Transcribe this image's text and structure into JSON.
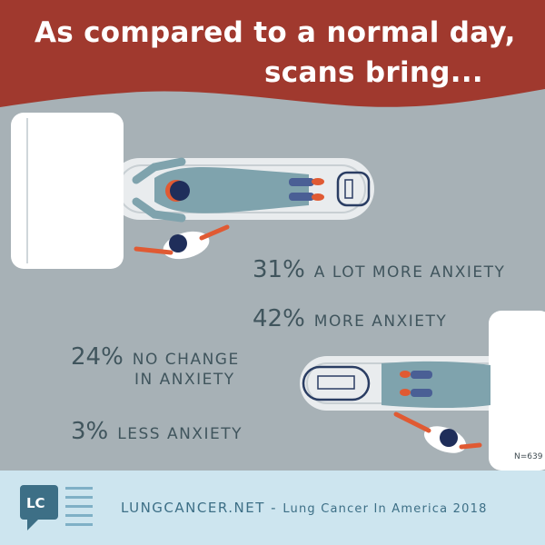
{
  "headline": {
    "line1": "As compared to a normal day,",
    "line2": "scans bring..."
  },
  "stats": [
    {
      "pct": "31%",
      "label": "a lot more anxiety"
    },
    {
      "pct": "42%",
      "label": "more anxiety"
    },
    {
      "pct": "24%",
      "label": "no change",
      "label2": "in anxiety"
    },
    {
      "pct": "3%",
      "label": "less anxiety"
    }
  ],
  "sample_size": "N=639",
  "footer": {
    "logo": "LC",
    "site": "LUNGCANCER.NET",
    "separator": " - ",
    "source": "Lung Cancer In America 2018"
  },
  "colors": {
    "header": "#a0392e",
    "background": "#a7b1b6",
    "stat_text": "#40555d",
    "footer_bg": "#cde5ef",
    "footer_text": "#3d6f86",
    "gown": "#7fa3ad",
    "accent_orange": "#e05a33",
    "navy": "#1f2e5a"
  }
}
